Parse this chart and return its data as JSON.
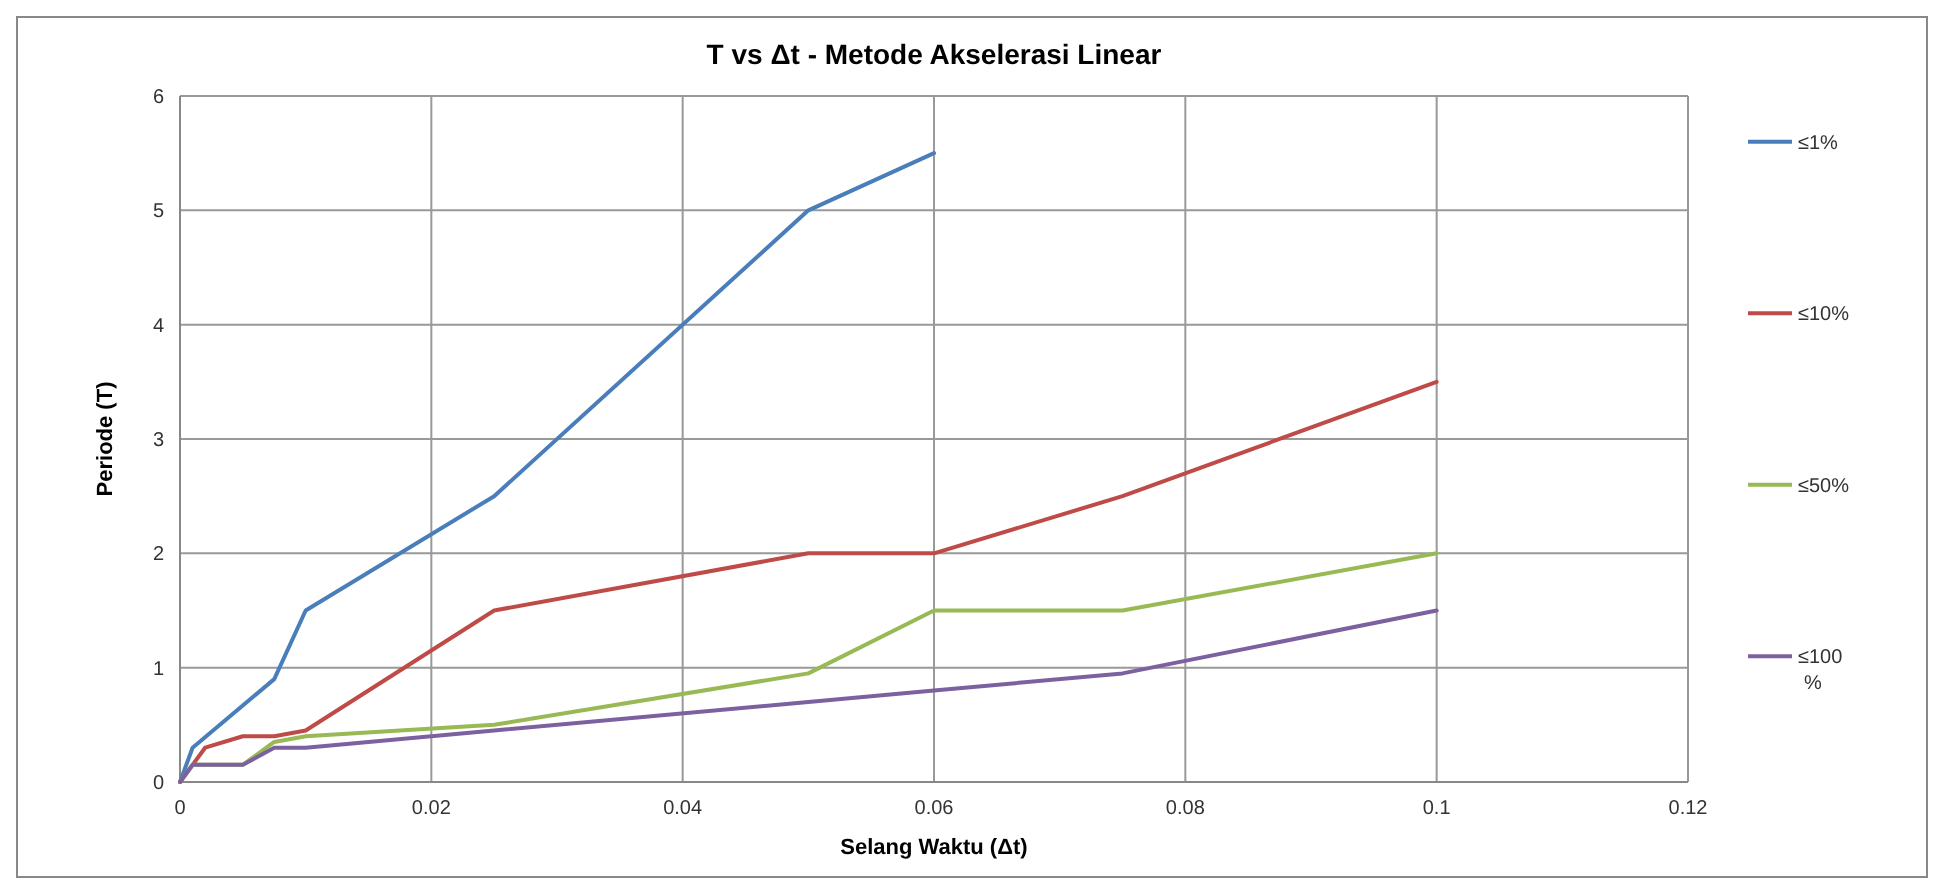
{
  "chart_data": {
    "type": "line",
    "title": "T vs Δt - Metode Akselerasi Linear",
    "xlabel": "Selang Waktu (Δt)",
    "ylabel": "Periode (T)",
    "xlim": [
      0,
      0.12
    ],
    "xticks": [
      0,
      0.02,
      0.04,
      0.06,
      0.08,
      0.1,
      0.12
    ],
    "ylim": [
      0,
      6
    ],
    "yticks": [
      0,
      1,
      2,
      3,
      4,
      5,
      6
    ],
    "grid": true,
    "legend": "right",
    "marker": "none",
    "line_style": "solid",
    "series": [
      {
        "name": "≤1%",
        "color": "#4a7ebb",
        "x": [
          0,
          0.001,
          0.0075,
          0.01,
          0.025,
          0.05,
          0.06
        ],
        "values": [
          0,
          0.3,
          0.9,
          1.5,
          2.5,
          5,
          5.5
        ]
      },
      {
        "name": "≤10%",
        "color": "#be4b48",
        "x": [
          0,
          0.002,
          0.005,
          0.0075,
          0.01,
          0.025,
          0.05,
          0.06,
          0.075,
          0.1
        ],
        "values": [
          0,
          0.3,
          0.4,
          0.4,
          0.45,
          1.5,
          2,
          2,
          2.5,
          3.5
        ]
      },
      {
        "name": "≤50%",
        "color": "#98b954",
        "x": [
          0,
          0.001,
          0.005,
          0.0075,
          0.01,
          0.025,
          0.05,
          0.06,
          0.075,
          0.1
        ],
        "values": [
          0,
          0.15,
          0.15,
          0.35,
          0.4,
          0.5,
          0.95,
          1.5,
          1.5,
          2
        ]
      },
      {
        "name": "≤100 %",
        "color": "#7d60a0",
        "x": [
          0,
          0.001,
          0.005,
          0.0075,
          0.01,
          0.025,
          0.05,
          0.06,
          0.075,
          0.1
        ],
        "values": [
          0,
          0.15,
          0.15,
          0.3,
          0.3,
          0.45,
          0.7,
          0.8,
          0.95,
          1.5
        ]
      }
    ]
  }
}
